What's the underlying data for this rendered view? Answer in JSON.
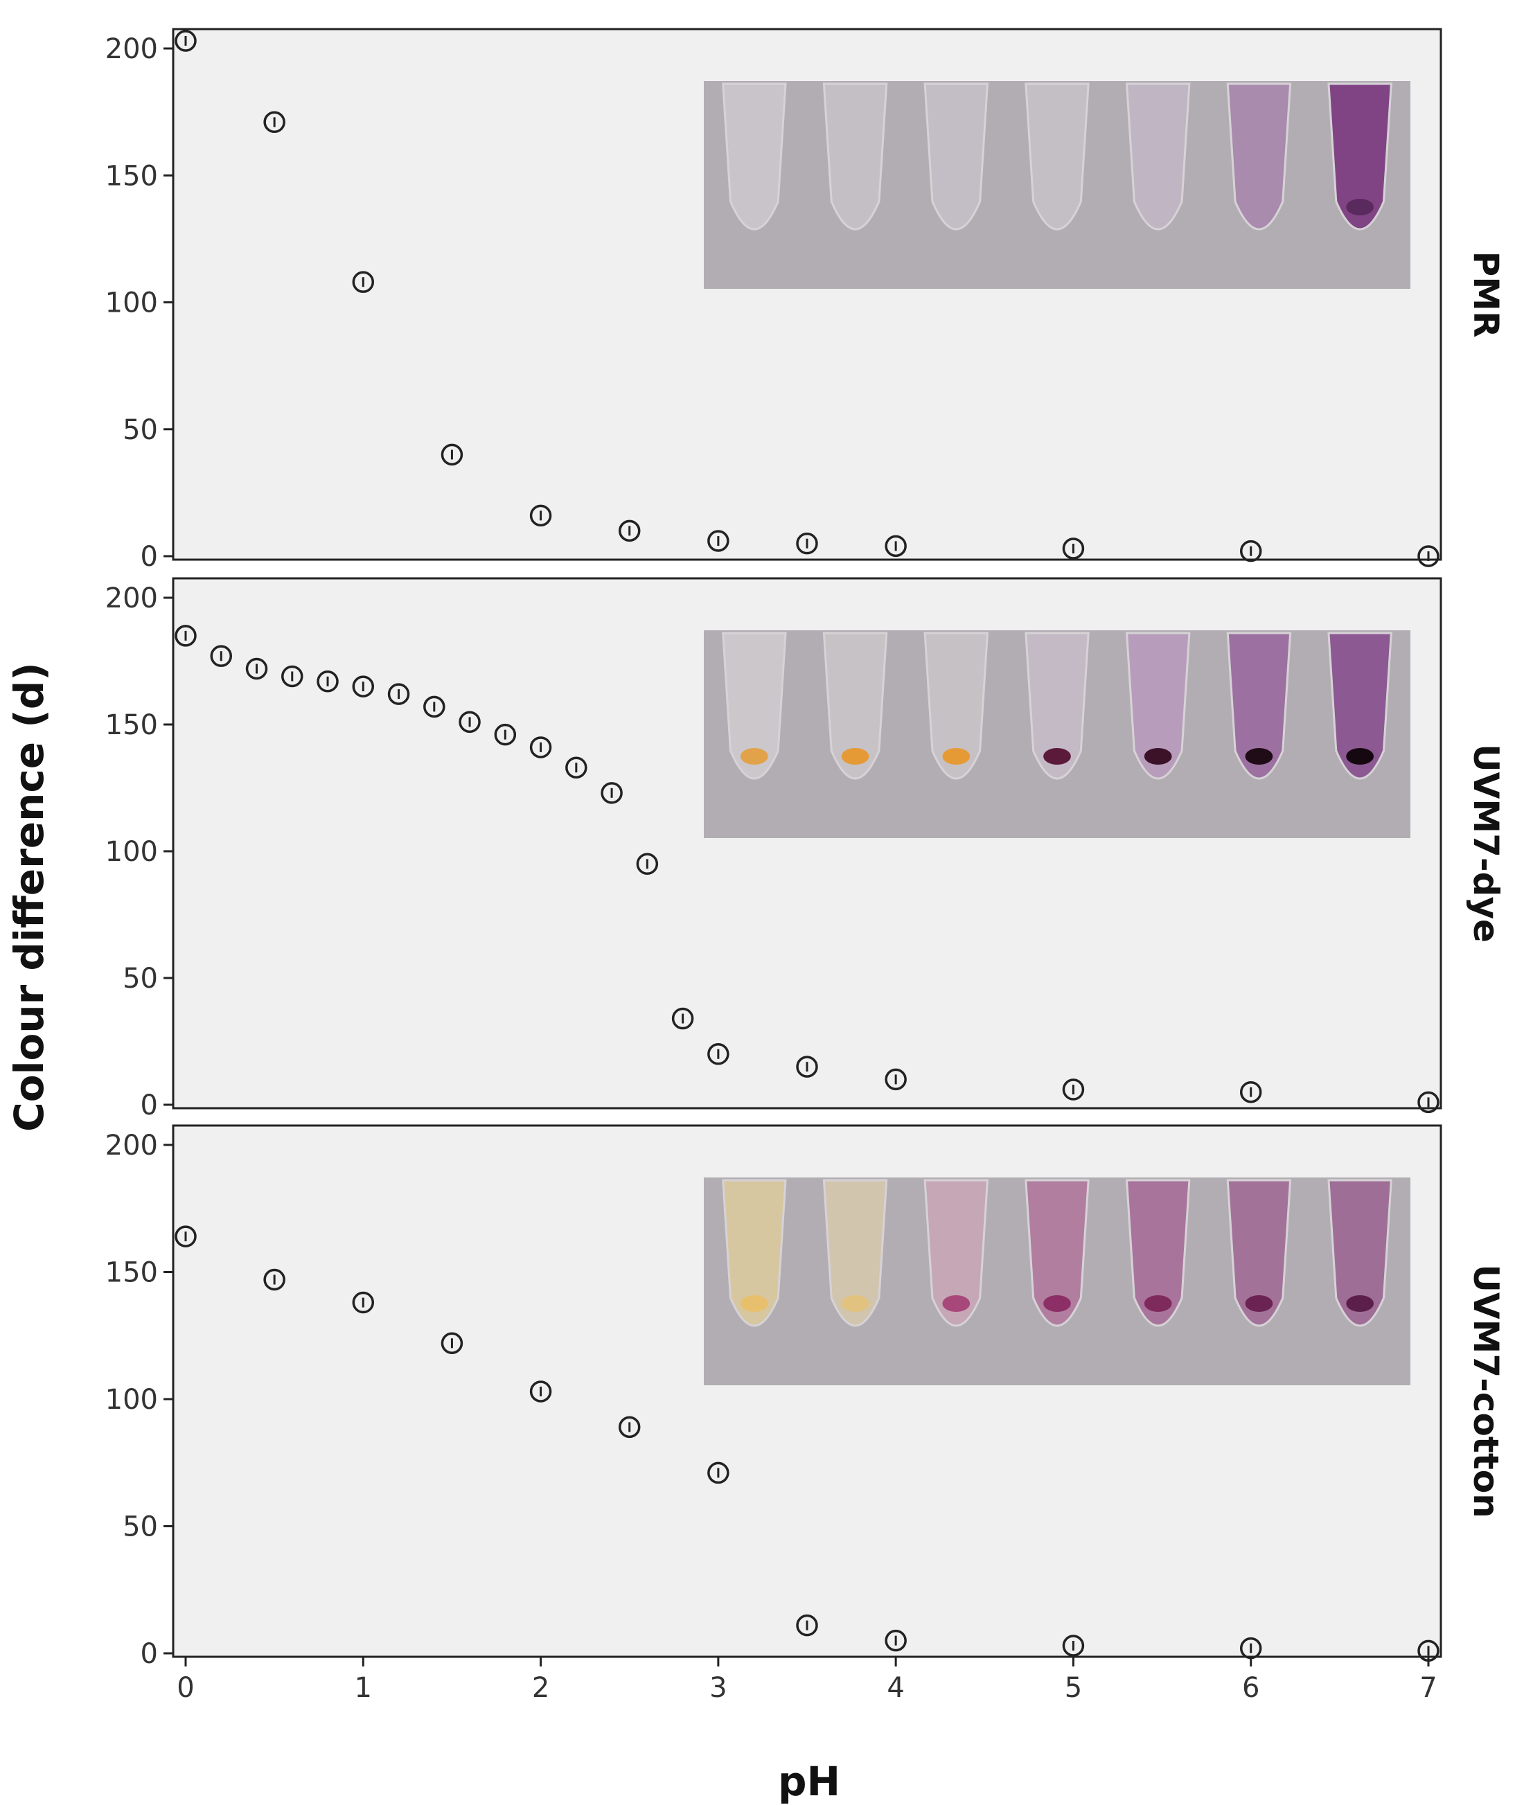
{
  "chart_data": {
    "type": "scatter",
    "xlabel": "pH",
    "ylabel": "Colour difference (d)",
    "xlim": [
      0,
      7
    ],
    "ylim": [
      0,
      200
    ],
    "x_ticks": [
      "0",
      "1",
      "2",
      "3",
      "4",
      "5",
      "6",
      "7"
    ],
    "y_ticks": [
      "0",
      "50",
      "100",
      "150",
      "200"
    ],
    "series": [
      {
        "name": "PMR",
        "x": [
          0,
          0.5,
          1,
          1.5,
          2,
          2.5,
          3,
          3.5,
          4,
          5,
          6,
          7
        ],
        "y": [
          203,
          171,
          108,
          40,
          16,
          10,
          6,
          5,
          4,
          3,
          2,
          0
        ],
        "inset": {
          "description": "photo of 7 tubes",
          "background": "#b2adb3",
          "tubes": [
            {
              "fill": "#cbc6cc",
              "band": null
            },
            {
              "fill": "#c6c0c7",
              "band": null
            },
            {
              "fill": "#c4bec6",
              "band": null
            },
            {
              "fill": "#c5bfc7",
              "band": null
            },
            {
              "fill": "#c1b6c3",
              "band": null
            },
            {
              "fill": "#a98aad",
              "band": null
            },
            {
              "fill": "#7e3f83",
              "band": "#5a2a5e"
            }
          ]
        }
      },
      {
        "name": "UVM7-dye",
        "x": [
          0,
          0.2,
          0.4,
          0.6,
          0.8,
          1.0,
          1.2,
          1.4,
          1.6,
          1.8,
          2.0,
          2.2,
          2.4,
          2.6,
          2.8,
          3,
          3.5,
          4,
          5,
          6,
          7
        ],
        "y": [
          185,
          177,
          172,
          169,
          167,
          165,
          162,
          157,
          151,
          146,
          141,
          133,
          123,
          95,
          34,
          20,
          15,
          10,
          6,
          5,
          1
        ],
        "inset": {
          "description": "photo of 7 tubes",
          "background": "#b2adb3",
          "tubes": [
            {
              "fill": "#cdc9cc",
              "band": "#e2a24a"
            },
            {
              "fill": "#c9c4c8",
              "band": "#e59a35"
            },
            {
              "fill": "#c8c3c7",
              "band": "#e69a36"
            },
            {
              "fill": "#c6bbc6",
              "band": "#5b1a3a"
            },
            {
              "fill": "#b99cbc",
              "band": "#3b1228"
            },
            {
              "fill": "#9b6da0",
              "band": "#1f0c17"
            },
            {
              "fill": "#8b5592",
              "band": "#150810"
            }
          ]
        }
      },
      {
        "name": "UVM7-cotton",
        "x": [
          0,
          0.5,
          1,
          1.5,
          2,
          2.5,
          3,
          3.5,
          4,
          5,
          6,
          7
        ],
        "y": [
          164,
          147,
          138,
          122,
          103,
          89,
          71,
          11,
          5,
          3,
          2,
          1
        ],
        "inset": {
          "description": "photo of 7 tubes",
          "background": "#b2adb3",
          "tubes": [
            {
              "fill": "#d9c9a0",
              "band": "#e8c06d"
            },
            {
              "fill": "#d3c7ae",
              "band": "#e2c27f"
            },
            {
              "fill": "#c7a7b7",
              "band": "#a8477a"
            },
            {
              "fill": "#b17c9f",
              "band": "#8c2f66"
            },
            {
              "fill": "#a9729b",
              "band": "#7f2a5c"
            },
            {
              "fill": "#a36f98",
              "band": "#6b2354"
            },
            {
              "fill": "#9e6b96",
              "band": "#5c1f4b"
            }
          ]
        }
      }
    ]
  }
}
